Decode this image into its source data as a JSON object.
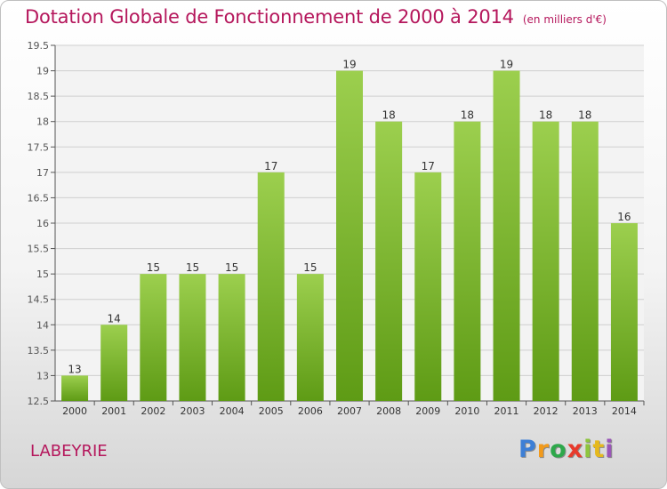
{
  "title": "Dotation Globale de Fonctionnement de 2000 à 2014",
  "unit": "(en milliers d'€)",
  "commune": "LABEYRIE",
  "logo": {
    "p": "P",
    "r": "r",
    "o": "o",
    "x": "x",
    "i1": "i",
    "t": "t",
    "i2": "i"
  },
  "colors": {
    "title": "#b5175c",
    "bar_top": "#9ccf4e",
    "bar_bottom": "#5e9b15",
    "grid": "#cfcfcf"
  },
  "chart_data": {
    "type": "bar",
    "categories": [
      "2000",
      "2001",
      "2002",
      "2003",
      "2004",
      "2005",
      "2006",
      "2007",
      "2008",
      "2009",
      "2010",
      "2011",
      "2012",
      "2013",
      "2014"
    ],
    "values": [
      13,
      14,
      15,
      15,
      15,
      17,
      15,
      19,
      18,
      17,
      18,
      19,
      18,
      18,
      16
    ],
    "data_labels": [
      "13",
      "14",
      "15",
      "15",
      "15",
      "17",
      "15",
      "19",
      "18",
      "17",
      "18",
      "19",
      "18",
      "18",
      "16"
    ],
    "yticks": [
      12.5,
      13,
      13.5,
      14,
      14.5,
      15,
      15.5,
      16,
      16.5,
      17,
      17.5,
      18,
      18.5,
      19,
      19.5
    ],
    "ylim": [
      12.5,
      19.5
    ],
    "grid": true,
    "title": "Dotation Globale de Fonctionnement de 2000 à 2014",
    "xlabel": "",
    "ylabel": ""
  }
}
